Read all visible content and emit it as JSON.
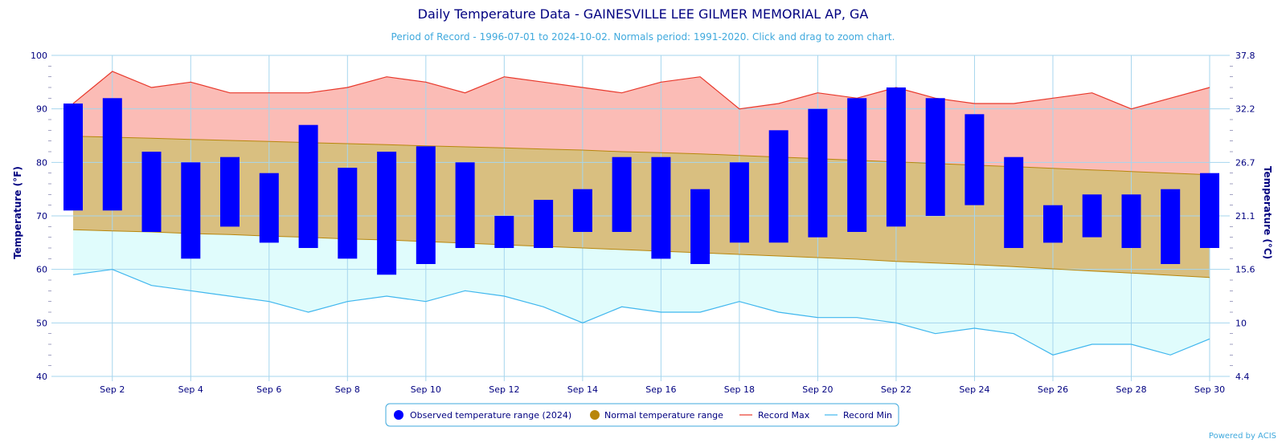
{
  "chart_data": {
    "type": "bar",
    "title": "Daily Temperature Data - GAINESVILLE LEE GILMER MEMORIAL AP, GA",
    "subtitle": "Period of Record - 1996-07-01 to 2024-10-02. Normals period: 1991-2020. Click and drag to zoom chart.",
    "ylabel": "Temperature (°F)",
    "ylabel_right": "Temperature (°C)",
    "ylim": [
      40,
      100
    ],
    "xlim": [
      1,
      30
    ],
    "y_ticks": [
      40,
      50,
      60,
      70,
      80,
      90,
      100
    ],
    "y_ticks_right": [
      "4.4",
      "10",
      "15.6",
      "21.1",
      "26.7",
      "32.2",
      "37.8"
    ],
    "x_ticks": [
      {
        "day": 2,
        "label": "Sep 2"
      },
      {
        "day": 4,
        "label": "Sep 4"
      },
      {
        "day": 6,
        "label": "Sep 6"
      },
      {
        "day": 8,
        "label": "Sep 8"
      },
      {
        "day": 10,
        "label": "Sep 10"
      },
      {
        "day": 12,
        "label": "Sep 12"
      },
      {
        "day": 14,
        "label": "Sep 14"
      },
      {
        "day": 16,
        "label": "Sep 16"
      },
      {
        "day": 18,
        "label": "Sep 18"
      },
      {
        "day": 20,
        "label": "Sep 20"
      },
      {
        "day": 22,
        "label": "Sep 22"
      },
      {
        "day": 24,
        "label": "Sep 24"
      },
      {
        "day": 26,
        "label": "Sep 26"
      },
      {
        "day": 28,
        "label": "Sep 28"
      },
      {
        "day": 30,
        "label": "Sep 30"
      }
    ],
    "days": [
      1,
      2,
      3,
      4,
      5,
      6,
      7,
      8,
      9,
      10,
      11,
      12,
      13,
      14,
      15,
      16,
      17,
      18,
      19,
      20,
      21,
      22,
      23,
      24,
      25,
      26,
      27,
      28,
      29,
      30
    ],
    "series": [
      {
        "name": "Observed temperature range (2024)",
        "kind": "range-bar",
        "color": "#0000ff",
        "high": [
          91,
          92,
          82,
          80,
          81,
          78,
          87,
          79,
          82,
          83,
          80,
          70,
          73,
          75,
          81,
          81,
          75,
          80,
          86,
          90,
          92,
          94,
          92,
          89,
          81,
          72,
          74,
          74,
          75,
          78
        ],
        "low": [
          71,
          71,
          67,
          62,
          68,
          65,
          64,
          62,
          59,
          61,
          64,
          64,
          64,
          67,
          67,
          62,
          61,
          65,
          65,
          66,
          67,
          68,
          70,
          72,
          64,
          65,
          66,
          64,
          61,
          64
        ]
      },
      {
        "name": "Normal temperature range",
        "kind": "band",
        "color": "#b8860b",
        "fill": "#d9bf80",
        "high": [
          84.9,
          84.7,
          84.5,
          84.3,
          84.1,
          83.9,
          83.7,
          83.5,
          83.3,
          83.1,
          82.9,
          82.7,
          82.5,
          82.3,
          82.0,
          81.8,
          81.6,
          81.3,
          81.0,
          80.7,
          80.4,
          80.1,
          79.8,
          79.5,
          79.2,
          78.9,
          78.6,
          78.3,
          78.0,
          77.7
        ],
        "low": [
          67.4,
          67.2,
          67.0,
          66.7,
          66.5,
          66.2,
          66.0,
          65.7,
          65.5,
          65.2,
          64.9,
          64.6,
          64.3,
          64.0,
          63.7,
          63.4,
          63.1,
          62.8,
          62.5,
          62.2,
          61.9,
          61.5,
          61.2,
          60.9,
          60.5,
          60.1,
          59.7,
          59.3,
          58.9,
          58.5
        ]
      },
      {
        "name": "Record Max",
        "kind": "line",
        "color": "#e8382b",
        "fill": "#fbbcb6",
        "values": [
          91,
          97,
          94,
          95,
          93,
          93,
          93,
          94,
          96,
          95,
          93,
          96,
          95,
          94,
          93,
          95,
          96,
          90,
          91,
          93,
          92,
          94,
          92,
          91,
          91,
          92,
          93,
          90,
          92,
          94
        ]
      },
      {
        "name": "Record Min",
        "kind": "line",
        "color": "#3fb6ee",
        "fill": "#e0fcfc",
        "values": [
          59,
          60,
          57,
          56,
          55,
          54,
          52,
          54,
          55,
          54,
          56,
          55,
          53,
          50,
          53,
          52,
          52,
          54,
          52,
          51,
          51,
          50,
          48,
          49,
          48,
          44,
          46,
          46,
          44,
          47
        ]
      }
    ],
    "legend_position": "bottom",
    "grid": true
  },
  "credit": "Powered by ACIS"
}
